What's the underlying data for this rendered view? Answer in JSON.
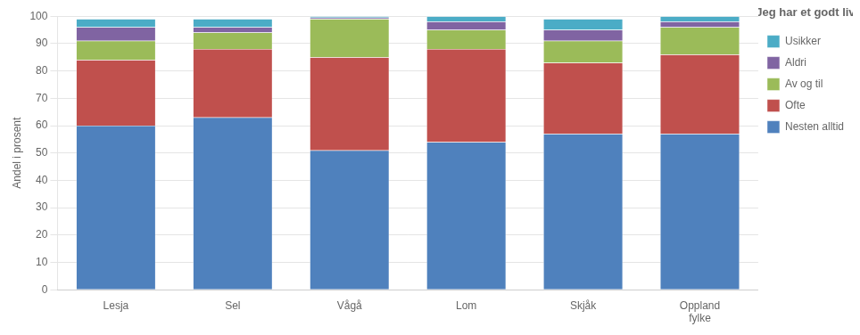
{
  "chart_data": {
    "type": "bar",
    "stacked": true,
    "categories": [
      "Lesja",
      "Sel",
      "Vågå",
      "Lom",
      "Skjåk",
      "Oppland\nfylke"
    ],
    "series": [
      {
        "name": "Nesten alltid",
        "color": "#4F81BD",
        "values": [
          60,
          63,
          51,
          54,
          57,
          57
        ]
      },
      {
        "name": "Ofte",
        "color": "#C0504D",
        "values": [
          24,
          25,
          34,
          34,
          26,
          29
        ]
      },
      {
        "name": "Av og til",
        "color": "#9BBB59",
        "values": [
          7,
          6,
          14,
          7,
          8,
          10
        ]
      },
      {
        "name": "Aldri",
        "color": "#8064A2",
        "values": [
          5,
          2,
          0.5,
          3,
          4,
          2
        ]
      },
      {
        "name": "Usikker",
        "color": "#4BACC6",
        "values": [
          3,
          3,
          0.5,
          2,
          4,
          2
        ]
      }
    ],
    "ylabel": "Andel i prosent",
    "legend_title": "Jeg har et godt liv",
    "legend": "right",
    "ylim": [
      0,
      100
    ],
    "yticks": [
      0,
      10,
      20,
      30,
      40,
      50,
      60,
      70,
      80,
      90,
      100
    ],
    "grid": true
  }
}
